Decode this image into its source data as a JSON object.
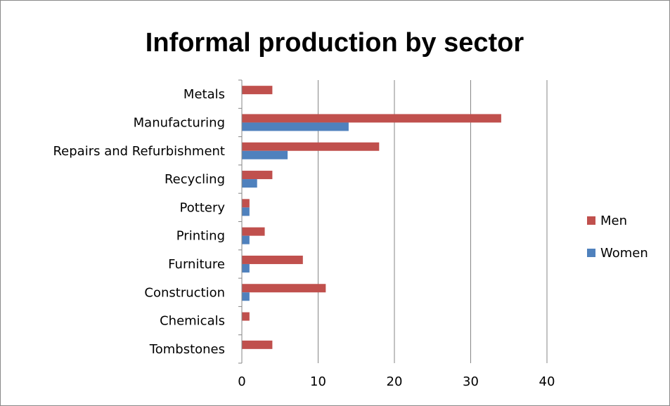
{
  "chart_data": {
    "type": "bar",
    "orientation": "horizontal",
    "title": "Informal production by sector",
    "categories": [
      "Metals",
      "Manufacturing",
      "Repairs and Refurbishment",
      "Recycling",
      "Pottery",
      "Printing",
      "Furniture",
      "Construction",
      "Chemicals",
      "Tombstones"
    ],
    "series": [
      {
        "name": "Men",
        "color": "#c0504d",
        "values": [
          4,
          34,
          18,
          4,
          1,
          3,
          8,
          11,
          1,
          4
        ]
      },
      {
        "name": "Women",
        "color": "#4f81bd",
        "values": [
          0,
          14,
          6,
          2,
          1,
          1,
          1,
          1,
          0,
          0
        ]
      }
    ],
    "xlim": [
      0,
      40
    ],
    "xticks": [
      0,
      10,
      20,
      30,
      40
    ],
    "xlabel": "",
    "ylabel": "",
    "grid": "vertical",
    "legend_position": "right"
  }
}
